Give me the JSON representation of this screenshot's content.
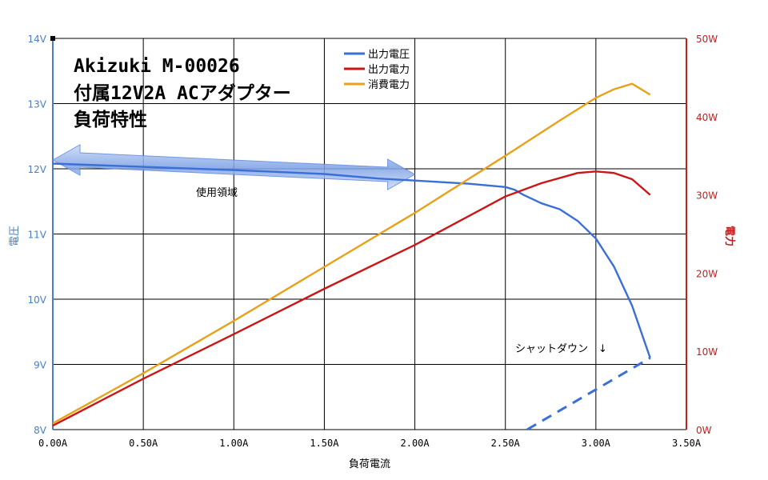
{
  "chart_data": {
    "type": "line",
    "title_lines": [
      "Akizuki M-00026",
      "付属12V2A ACアダプター",
      "負荷特性"
    ],
    "xlabel": "負荷電流",
    "ylabel_left": "電圧",
    "ylabel_right": "電力",
    "xlim": [
      0,
      3.5
    ],
    "ylim_left": [
      8,
      14
    ],
    "ylim_right": [
      0,
      50
    ],
    "x_ticks": [
      "0.00A",
      "0.50A",
      "1.00A",
      "1.50A",
      "2.00A",
      "2.50A",
      "3.00A",
      "3.50A"
    ],
    "y_left_ticks": [
      "8V",
      "9V",
      "10V",
      "11V",
      "12V",
      "13V",
      "14V"
    ],
    "y_right_ticks": [
      "0W",
      "10W",
      "20W",
      "30W",
      "40W",
      "50W"
    ],
    "grid": true,
    "legend_position": "top-center",
    "colors": {
      "voltage": "#3a6fd6",
      "output_power": "#cc1515",
      "consumed_power": "#e8a21a",
      "left_axis": "#4a7fc8",
      "right_axis": "#c02020"
    },
    "series": [
      {
        "name": "出力電圧",
        "axis": "left",
        "color": "#3a6fd6",
        "x": [
          0,
          0.5,
          1.0,
          1.5,
          1.8,
          2.0,
          2.3,
          2.5,
          2.55,
          2.6,
          2.7,
          2.8,
          2.9,
          3.0,
          3.1,
          3.2,
          3.3
        ],
        "y": [
          12.08,
          12.03,
          11.98,
          11.92,
          11.85,
          11.82,
          11.77,
          11.72,
          11.68,
          11.6,
          11.47,
          11.38,
          11.2,
          10.93,
          10.5,
          9.9,
          9.1
        ]
      },
      {
        "name": "出力電力",
        "axis": "right",
        "color": "#cc1515",
        "x": [
          0,
          0.5,
          1.0,
          1.5,
          2.0,
          2.5,
          2.7,
          2.9,
          3.0,
          3.1,
          3.2,
          3.3
        ],
        "y": [
          0.5,
          6.5,
          12.2,
          18.0,
          23.6,
          29.8,
          31.5,
          32.8,
          33.0,
          32.8,
          32.0,
          30.0
        ]
      },
      {
        "name": "消費電力",
        "axis": "right",
        "color": "#e8a21a",
        "x": [
          0,
          0.5,
          1.0,
          1.5,
          2.0,
          2.5,
          2.8,
          3.0,
          3.1,
          3.2,
          3.3
        ],
        "y": [
          0.8,
          7.2,
          13.9,
          20.8,
          27.7,
          35.0,
          39.5,
          42.4,
          43.5,
          44.2,
          42.8
        ]
      }
    ],
    "annotations": [
      {
        "text": "使用領域",
        "kind": "range-arrow",
        "x_range": [
          0,
          2.0
        ],
        "color": "#7aa0e8"
      },
      {
        "text": "シャットダウン　↓",
        "kind": "shutdown-dashed",
        "from": [
          2.62,
          0
        ],
        "to": [
          3.3,
          9.1
        ]
      }
    ]
  }
}
